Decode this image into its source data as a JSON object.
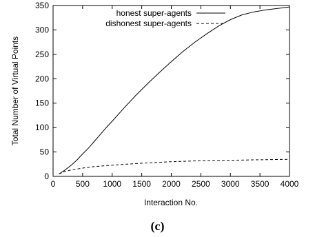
{
  "chart_data": {
    "type": "line",
    "xlabel": "Interaction No.",
    "ylabel": "Total Number of Virtual Points",
    "xlim": [
      0,
      4000
    ],
    "ylim": [
      0,
      350
    ],
    "xticks": [
      0,
      500,
      1000,
      1500,
      2000,
      2500,
      3000,
      3500,
      4000
    ],
    "yticks": [
      0,
      50,
      100,
      150,
      200,
      250,
      300,
      350
    ],
    "grid": false,
    "legend_position": "top-right",
    "series": [
      {
        "name": "honest super-agents",
        "style": "solid",
        "x": [
          100,
          200,
          300,
          400,
          500,
          600,
          700,
          800,
          900,
          1000,
          1200,
          1400,
          1600,
          1800,
          2000,
          2200,
          2400,
          2600,
          2800,
          3000,
          3200,
          3400,
          3600,
          3800,
          4000
        ],
        "y": [
          5,
          13,
          22,
          33,
          46,
          58,
          72,
          86,
          100,
          113,
          140,
          166,
          190,
          213,
          235,
          256,
          275,
          292,
          308,
          321,
          331,
          337,
          341,
          344,
          347
        ]
      },
      {
        "name": "dishonest super-agents",
        "style": "dashed",
        "x": [
          100,
          200,
          300,
          400,
          500,
          700,
          1000,
          1500,
          2000,
          2500,
          3000,
          3500,
          4000
        ],
        "y": [
          5,
          10,
          13,
          15,
          17,
          20,
          23,
          27,
          30,
          32,
          33,
          34,
          35
        ]
      }
    ]
  },
  "caption": "(c)"
}
